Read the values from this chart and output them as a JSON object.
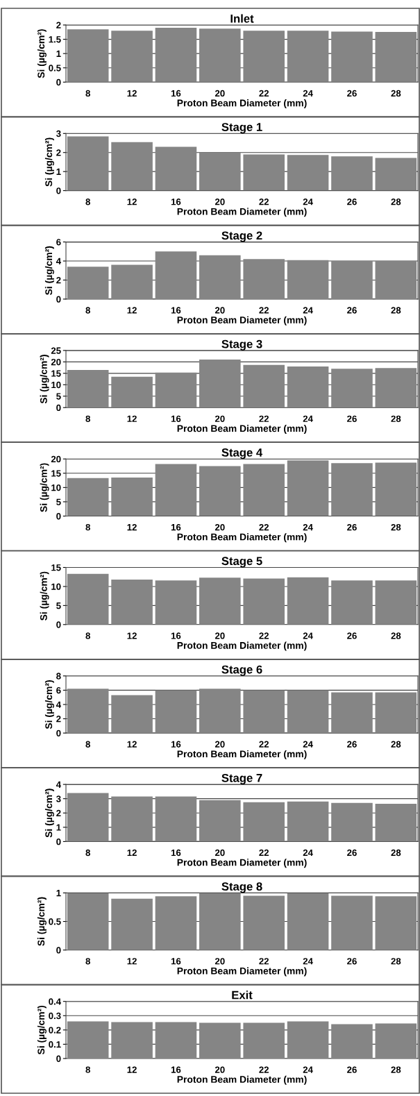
{
  "chart_data": [
    {
      "type": "bar",
      "title": "Inlet",
      "xlabel": "Proton Beam Diameter (mm)",
      "ylabel": "Si (µg/cm²)",
      "categories": [
        "8",
        "12",
        "16",
        "20",
        "22",
        "24",
        "26",
        "28"
      ],
      "values": [
        1.85,
        1.8,
        1.9,
        1.87,
        1.8,
        1.8,
        1.77,
        1.76
      ],
      "color": "#858585",
      "ylim": [
        0,
        2
      ],
      "yticks": [
        0,
        0.5,
        1,
        1.5,
        2
      ],
      "grid": "y"
    },
    {
      "type": "bar",
      "title": "Stage 1",
      "xlabel": "Proton Beam Diameter (mm)",
      "ylabel": "Si (µg/cm²)",
      "categories": [
        "8",
        "12",
        "16",
        "20",
        "22",
        "24",
        "26",
        "28"
      ],
      "values": [
        2.85,
        2.55,
        2.3,
        2.0,
        1.9,
        1.87,
        1.8,
        1.72
      ],
      "color": "#858585",
      "ylim": [
        0,
        3
      ],
      "yticks": [
        0,
        1,
        2,
        3
      ],
      "grid": "y"
    },
    {
      "type": "bar",
      "title": "Stage 2",
      "xlabel": "Proton Beam Diameter (mm)",
      "ylabel": "Si (µg/cm²)",
      "categories": [
        "8",
        "12",
        "16",
        "20",
        "22",
        "24",
        "26",
        "28"
      ],
      "values": [
        3.4,
        3.6,
        5.0,
        4.6,
        4.2,
        4.1,
        4.0,
        4.0
      ],
      "color": "#858585",
      "ylim": [
        0,
        6
      ],
      "yticks": [
        0,
        2,
        4,
        6
      ],
      "grid": "y"
    },
    {
      "type": "bar",
      "title": "Stage 3",
      "xlabel": "Proton Beam Diameter (mm)",
      "ylabel": "Si (µg/cm²)",
      "categories": [
        "8",
        "12",
        "16",
        "20",
        "22",
        "24",
        "26",
        "28"
      ],
      "values": [
        16.5,
        13.5,
        15.3,
        21,
        18.7,
        18,
        17,
        17.3
      ],
      "color": "#858585",
      "ylim": [
        0,
        25
      ],
      "yticks": [
        0,
        5,
        10,
        15,
        20,
        25
      ],
      "grid": "y"
    },
    {
      "type": "bar",
      "title": "Stage 4",
      "xlabel": "Proton Beam Diameter (mm)",
      "ylabel": "Si (µg/cm²)",
      "categories": [
        "8",
        "12",
        "16",
        "20",
        "22",
        "24",
        "26",
        "28"
      ],
      "values": [
        13.3,
        13.5,
        18.2,
        17.5,
        18.2,
        19.5,
        18.5,
        18.7
      ],
      "color": "#858585",
      "ylim": [
        0,
        20
      ],
      "yticks": [
        0,
        5,
        10,
        15,
        20
      ],
      "grid": "y"
    },
    {
      "type": "bar",
      "title": "Stage 5",
      "xlabel": "Proton Beam Diameter (mm)",
      "ylabel": "Si (µg/cm²)",
      "categories": [
        "8",
        "12",
        "16",
        "20",
        "22",
        "24",
        "26",
        "28"
      ],
      "values": [
        13.3,
        11.8,
        11.6,
        12.3,
        12.1,
        12.4,
        11.6,
        11.6
      ],
      "color": "#858585",
      "ylim": [
        0,
        15
      ],
      "yticks": [
        0,
        5,
        10,
        15
      ],
      "grid": "y"
    },
    {
      "type": "bar",
      "title": "Stage 6",
      "xlabel": "Proton Beam Diameter (mm)",
      "ylabel": "Si (µg/cm²)",
      "categories": [
        "8",
        "12",
        "16",
        "20",
        "22",
        "24",
        "26",
        "28"
      ],
      "values": [
        6.2,
        5.3,
        6.0,
        6.2,
        6.0,
        6.0,
        5.7,
        5.7
      ],
      "color": "#858585",
      "ylim": [
        0,
        8
      ],
      "yticks": [
        0,
        2,
        4,
        6,
        8
      ],
      "grid": "y"
    },
    {
      "type": "bar",
      "title": "Stage 7",
      "xlabel": "Proton Beam Diameter (mm)",
      "ylabel": "Si (µg/cm²)",
      "categories": [
        "8",
        "12",
        "16",
        "20",
        "22",
        "24",
        "26",
        "28"
      ],
      "values": [
        3.4,
        3.15,
        3.15,
        2.9,
        2.75,
        2.8,
        2.7,
        2.65
      ],
      "color": "#858585",
      "ylim": [
        0,
        4
      ],
      "yticks": [
        0,
        1,
        2,
        3,
        4
      ],
      "grid": "y"
    },
    {
      "type": "bar",
      "title": "Stage 8",
      "xlabel": "Proton Beam Diameter (mm)",
      "ylabel": "Si (µg/cm²)",
      "categories": [
        "8",
        "12",
        "16",
        "20",
        "22",
        "24",
        "26",
        "28"
      ],
      "values": [
        1.0,
        0.9,
        0.94,
        1.0,
        0.95,
        1.0,
        0.95,
        0.94
      ],
      "color": "#858585",
      "ylim": [
        0,
        1
      ],
      "yticks": [
        0,
        0.5,
        1
      ],
      "grid": "y"
    },
    {
      "type": "bar",
      "title": "Exit",
      "xlabel": "Proton Beam Diameter (mm)",
      "ylabel": "Si (µg/cm²)",
      "categories": [
        "8",
        "12",
        "16",
        "20",
        "22",
        "24",
        "26",
        "28"
      ],
      "values": [
        0.26,
        0.255,
        0.255,
        0.25,
        0.25,
        0.26,
        0.24,
        0.245
      ],
      "color": "#858585",
      "ylim": [
        0,
        0.4
      ],
      "yticks": [
        0,
        0.1,
        0.2,
        0.3,
        0.4
      ],
      "grid": "y"
    }
  ]
}
